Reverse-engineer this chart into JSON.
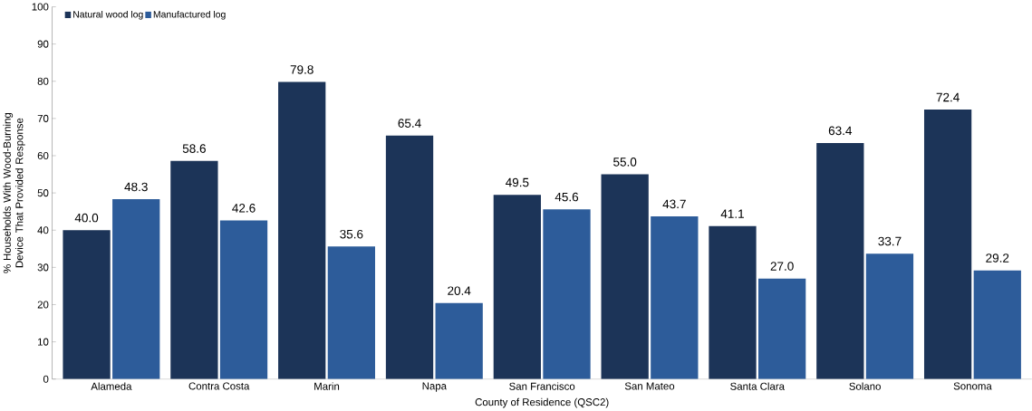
{
  "chart_data": {
    "type": "bar",
    "xlabel": "County of Residence (QSC2)",
    "ylabel": "% Households With Wood-Burning Device That Provided Response",
    "categories": [
      "Alameda",
      "Contra Costa",
      "Marin",
      "Napa",
      "San Francisco",
      "San Mateo",
      "Santa Clara",
      "Solano",
      "Sonoma"
    ],
    "series": [
      {
        "name": "Natural wood log",
        "color": "#1c3458",
        "values": [
          40.0,
          58.6,
          79.8,
          65.4,
          49.5,
          55.0,
          41.1,
          63.4,
          72.4
        ],
        "value_labels": [
          "40.0",
          "58.6",
          "79.8",
          "65.4",
          "49.5",
          "55.0",
          "41.1",
          "63.4",
          "72.4"
        ]
      },
      {
        "name": "Manufactured log",
        "color": "#2d5c9a",
        "values": [
          48.3,
          42.6,
          35.6,
          20.4,
          45.6,
          43.7,
          27.0,
          33.7,
          29.2
        ],
        "value_labels": [
          "48.3",
          "42.6",
          "35.6",
          "20.4",
          "45.6",
          "43.7",
          "27.0",
          "33.7",
          "29.2"
        ]
      }
    ],
    "ylim": [
      0,
      100
    ],
    "yticks": [
      0,
      10,
      20,
      30,
      40,
      50,
      60,
      70,
      80,
      90,
      100
    ],
    "grid": false,
    "legend": "top left"
  }
}
